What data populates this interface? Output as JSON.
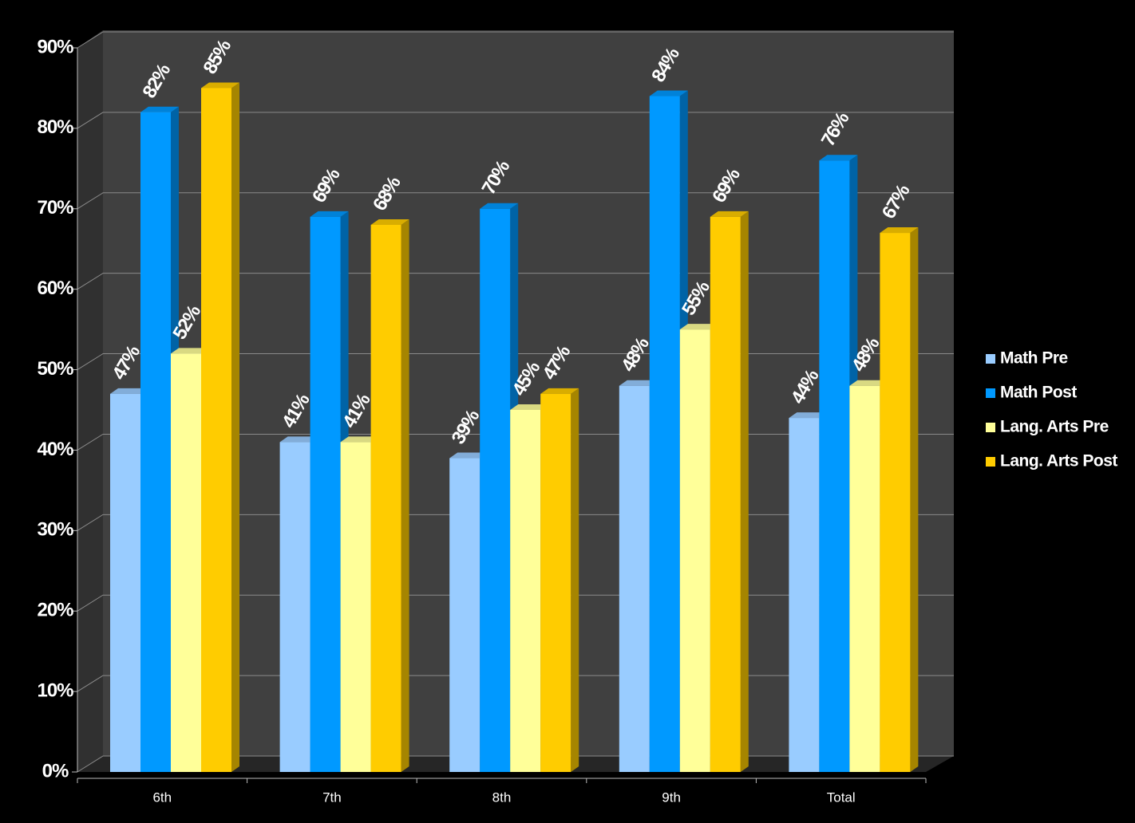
{
  "chart_data": {
    "type": "bar3d",
    "categories": [
      "6th",
      "7th",
      "8th",
      "9th",
      "Total"
    ],
    "series": [
      {
        "name": "Math Pre",
        "color": "#99ccff",
        "values": [
          47,
          41,
          39,
          48,
          44
        ],
        "value_labels": [
          "47%",
          "41%",
          "39%",
          "48%",
          "44%"
        ]
      },
      {
        "name": "Math Post",
        "color": "#0099ff",
        "values": [
          82,
          69,
          70,
          84,
          76
        ],
        "value_labels": [
          "82%",
          "69%",
          "70%",
          "84%",
          "76%"
        ]
      },
      {
        "name": "Lang. Arts Pre",
        "color": "#ffff99",
        "values": [
          52,
          41,
          45,
          55,
          48
        ],
        "value_labels": [
          "52%",
          "41%",
          "45%",
          "55%",
          "48%"
        ]
      },
      {
        "name": "Lang. Arts Post",
        "color": "#ffcc00",
        "values": [
          85,
          68,
          47,
          69,
          67
        ],
        "value_labels": [
          "85%",
          "68%",
          "47%",
          "69%",
          "67%"
        ]
      }
    ],
    "ylim": [
      0,
      90
    ],
    "yticks": [
      {
        "value": 0,
        "label": "0%"
      },
      {
        "value": 10,
        "label": "10%"
      },
      {
        "value": 20,
        "label": "20%"
      },
      {
        "value": 30,
        "label": "30%"
      },
      {
        "value": 40,
        "label": "40%"
      },
      {
        "value": 50,
        "label": "50%"
      },
      {
        "value": 60,
        "label": "60%"
      },
      {
        "value": 70,
        "label": "70%"
      },
      {
        "value": 80,
        "label": "80%"
      },
      {
        "value": 90,
        "label": "90%"
      }
    ],
    "grid": true,
    "legend": "right"
  }
}
